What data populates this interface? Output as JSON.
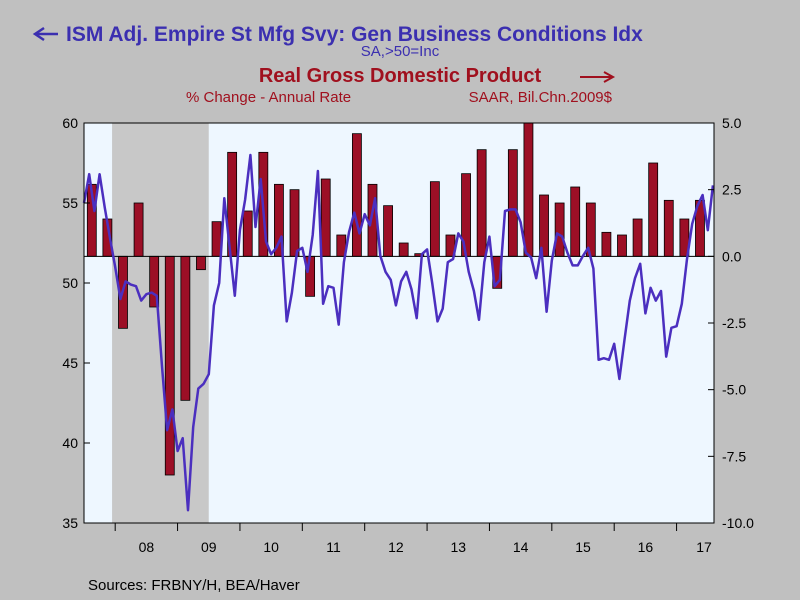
{
  "titles": {
    "left_series_title": "ISM Adj. Empire St Mfg Svy: Gen Business Conditions Idx",
    "left_series_subtitle": "SA,>50=Inc",
    "right_series_title": "Real Gross Domestic Product",
    "right_series_sub_left": "% Change - Annual Rate",
    "right_series_sub_right": "SAAR, Bil.Chn.2009$"
  },
  "source": "Sources:  FRBNY/H, BEA/Haver",
  "colors": {
    "background": "#c0c0c0",
    "plot_area": "#eef7ff",
    "recession": "#c8c8c8",
    "line": "#4b2fbf",
    "bars": "#9c0f26",
    "left_title": "#3b2fb0",
    "right_title": "#a0101e"
  },
  "chart_data": {
    "type": "bar+line",
    "recession_shading": {
      "start": 2007.95,
      "end": 2009.5
    },
    "x_range": [
      2007.5,
      2017.6
    ],
    "x_tick_labels": [
      "08",
      "09",
      "10",
      "11",
      "12",
      "13",
      "14",
      "15",
      "16",
      "17"
    ],
    "x_tick_label_positions": [
      2008.5,
      2009.5,
      2010.5,
      2011.5,
      2012.5,
      2013.5,
      2014.5,
      2015.5,
      2016.5,
      2017.5
    ],
    "x_tick_marks": [
      2008,
      2009,
      2010,
      2011,
      2012,
      2013,
      2014,
      2015,
      2016,
      2017
    ],
    "left_axis": {
      "ylim": [
        35,
        60
      ],
      "ticks": [
        "35",
        "40",
        "45",
        "50",
        "55",
        "60"
      ],
      "tick_values": [
        35,
        40,
        45,
        50,
        55,
        60
      ]
    },
    "right_axis": {
      "ylim": [
        -10,
        5
      ],
      "ticks": [
        "-10.0",
        "-7.5",
        "-5.0",
        "-2.5",
        "0.0",
        "2.5",
        "5.0"
      ],
      "tick_values": [
        -10,
        -7.5,
        -5,
        -2.5,
        0,
        2.5,
        5
      ]
    },
    "series": [
      {
        "name": "Real Gross Domestic Product",
        "axis": "right",
        "kind": "bar",
        "x": [
          2007.625,
          2007.875,
          2008.125,
          2008.375,
          2008.625,
          2008.875,
          2009.125,
          2009.375,
          2009.625,
          2009.875,
          2010.125,
          2010.375,
          2010.625,
          2010.875,
          2011.125,
          2011.375,
          2011.625,
          2011.875,
          2012.125,
          2012.375,
          2012.625,
          2012.875,
          2013.125,
          2013.375,
          2013.625,
          2013.875,
          2014.125,
          2014.375,
          2014.625,
          2014.875,
          2015.125,
          2015.375,
          2015.625,
          2015.875,
          2016.125,
          2016.375,
          2016.625,
          2016.875,
          2017.125,
          2017.375
        ],
        "values": [
          2.7,
          1.4,
          -2.7,
          2.0,
          -1.9,
          -8.2,
          -5.4,
          -0.5,
          1.3,
          3.9,
          1.7,
          3.9,
          2.7,
          2.5,
          -1.5,
          2.9,
          0.8,
          4.6,
          2.7,
          1.9,
          0.5,
          0.1,
          2.8,
          0.8,
          3.1,
          4.0,
          -1.2,
          4.0,
          5.0,
          2.3,
          2.0,
          2.6,
          2.0,
          0.9,
          0.8,
          1.4,
          3.5,
          2.1,
          1.4,
          2.1
        ]
      },
      {
        "name": "ISM Adj. Empire St Mfg Svy: Gen Business Conditions Idx",
        "axis": "left",
        "kind": "line",
        "x": [
          2007.5,
          2007.583,
          2007.667,
          2007.75,
          2007.833,
          2007.917,
          2008.0,
          2008.083,
          2008.167,
          2008.25,
          2008.333,
          2008.417,
          2008.5,
          2008.583,
          2008.667,
          2008.75,
          2008.833,
          2008.917,
          2009.0,
          2009.083,
          2009.167,
          2009.25,
          2009.333,
          2009.417,
          2009.5,
          2009.583,
          2009.667,
          2009.75,
          2009.833,
          2009.917,
          2010.0,
          2010.083,
          2010.167,
          2010.25,
          2010.333,
          2010.417,
          2010.5,
          2010.583,
          2010.667,
          2010.75,
          2010.833,
          2010.917,
          2011.0,
          2011.083,
          2011.167,
          2011.25,
          2011.333,
          2011.417,
          2011.5,
          2011.583,
          2011.667,
          2011.75,
          2011.833,
          2011.917,
          2012.0,
          2012.083,
          2012.167,
          2012.25,
          2012.333,
          2012.417,
          2012.5,
          2012.583,
          2012.667,
          2012.75,
          2012.833,
          2012.917,
          2013.0,
          2013.083,
          2013.167,
          2013.25,
          2013.333,
          2013.417,
          2013.5,
          2013.583,
          2013.667,
          2013.75,
          2013.833,
          2013.917,
          2014.0,
          2014.083,
          2014.167,
          2014.25,
          2014.333,
          2014.417,
          2014.5,
          2014.583,
          2014.667,
          2014.75,
          2014.833,
          2014.917,
          2015.0,
          2015.083,
          2015.167,
          2015.25,
          2015.333,
          2015.417,
          2015.5,
          2015.583,
          2015.667,
          2015.75,
          2015.833,
          2015.917,
          2016.0,
          2016.083,
          2016.167,
          2016.25,
          2016.333,
          2016.417,
          2016.5,
          2016.583,
          2016.667,
          2016.75,
          2016.833,
          2016.917,
          2017.0,
          2017.083,
          2017.167,
          2017.25,
          2017.333,
          2017.417,
          2017.5,
          2017.583
        ],
        "values": [
          55.0,
          56.8,
          54.5,
          56.8,
          54.7,
          52.8,
          51.0,
          49.0,
          50.1,
          49.9,
          49.8,
          48.9,
          49.3,
          49.4,
          49.2,
          44.8,
          40.8,
          42.1,
          39.5,
          40.3,
          35.8,
          41.0,
          43.4,
          43.7,
          44.3,
          48.6,
          50.0,
          55.3,
          52.3,
          49.2,
          53.3,
          55.2,
          58.0,
          53.5,
          56.5,
          52.6,
          51.8,
          52.2,
          52.9,
          47.6,
          49.4,
          52.0,
          52.2,
          50.7,
          53.0,
          57.0,
          48.7,
          49.8,
          49.7,
          47.4,
          51.3,
          53.2,
          54.4,
          53.1,
          54.3,
          53.6,
          55.3,
          51.7,
          50.7,
          50.2,
          48.6,
          50.1,
          50.7,
          49.6,
          47.8,
          51.8,
          52.1,
          50.0,
          47.6,
          48.4,
          51.3,
          51.5,
          53.1,
          52.6,
          50.7,
          49.5,
          47.7,
          51.3,
          52.9,
          49.8,
          50.2,
          54.5,
          54.6,
          54.6,
          53.8,
          51.9,
          51.6,
          50.3,
          52.2,
          48.2,
          51.4,
          53.1,
          52.9,
          51.9,
          51.1,
          51.1,
          51.7,
          52.2,
          50.9,
          45.2,
          45.3,
          45.2,
          46.2,
          44.0,
          46.5,
          48.9,
          50.3,
          51.2,
          48.1,
          49.7,
          48.9,
          49.5,
          45.4,
          47.2,
          47.3,
          48.7,
          51.5,
          53.7,
          54.8,
          55.5,
          53.3,
          56.1
        ]
      }
    ],
    "legend": "top-center"
  }
}
